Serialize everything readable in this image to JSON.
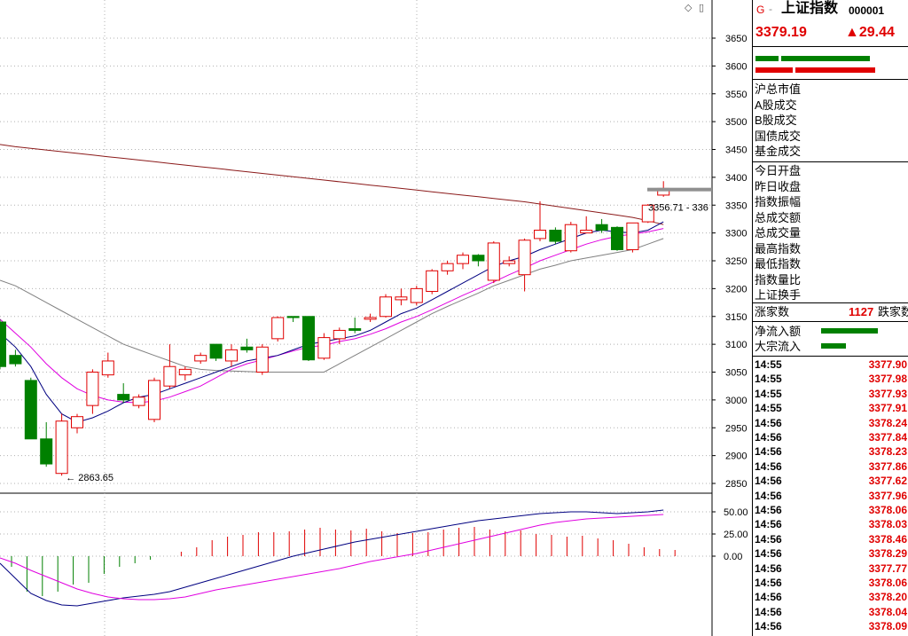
{
  "panel": {
    "icon_g": "G",
    "icon_dash": "-",
    "index_name": "上证指数",
    "index_code": "000001",
    "price": "3379.19",
    "change": "▲29.44",
    "labels_market": [
      "沪总市值",
      "A股成交",
      "B股成交",
      "国债成交",
      "基金成交"
    ],
    "labels_stats": [
      "今日开盘",
      "昨日收盘",
      "指数振幅",
      "总成交额",
      "总成交量",
      "最高指数",
      "最低指数",
      "指数量比",
      "上证换手"
    ],
    "rise_label": "涨家数",
    "rise_value": "1127",
    "fall_label": "跌家数",
    "flow_labels": [
      "净流入额",
      "大宗流入"
    ],
    "trades": [
      {
        "time": "14:55",
        "price": "3377.90"
      },
      {
        "time": "14:55",
        "price": "3377.98"
      },
      {
        "time": "14:55",
        "price": "3377.93"
      },
      {
        "time": "14:55",
        "price": "3377.91"
      },
      {
        "time": "14:56",
        "price": "3378.24"
      },
      {
        "time": "14:56",
        "price": "3377.84"
      },
      {
        "time": "14:56",
        "price": "3378.23"
      },
      {
        "time": "14:56",
        "price": "3377.86"
      },
      {
        "time": "14:56",
        "price": "3377.62"
      },
      {
        "time": "14:56",
        "price": "3377.96"
      },
      {
        "time": "14:56",
        "price": "3378.06"
      },
      {
        "time": "14:56",
        "price": "3378.03"
      },
      {
        "time": "14:56",
        "price": "3378.46"
      },
      {
        "time": "14:56",
        "price": "3378.29"
      },
      {
        "time": "14:56",
        "price": "3377.77"
      },
      {
        "time": "14:56",
        "price": "3378.06"
      },
      {
        "time": "14:56",
        "price": "3378.20"
      },
      {
        "time": "14:56",
        "price": "3378.04"
      },
      {
        "time": "14:56",
        "price": "3378.09"
      }
    ]
  },
  "colors": {
    "up": "#e00000",
    "down": "#008000",
    "ma_long": "#8b1a1a",
    "ma_fast": "#000080",
    "ma_mid": "#e000e0",
    "ma_slow": "#808080"
  },
  "chart_data": [
    {
      "type": "candlestick",
      "y_ticks": [
        3650,
        3600,
        3550,
        3500,
        3450,
        3400,
        3350,
        3300,
        3250,
        3200,
        3150,
        3100,
        3050,
        3000,
        2950,
        2900,
        2850
      ],
      "ylim": [
        2835,
        3675
      ],
      "low_annotation": "2863.65",
      "high_annotation": "3356.71 - 336",
      "candles": [
        {
          "o": 3140,
          "h": 3145,
          "l": 3055,
          "c": 3060
        },
        {
          "o": 3080,
          "h": 3090,
          "l": 3060,
          "c": 3065
        },
        {
          "o": 3035,
          "h": 3040,
          "l": 2930,
          "c": 2930
        },
        {
          "o": 2930,
          "h": 2960,
          "l": 2880,
          "c": 2885
        },
        {
          "o": 2868,
          "h": 2975,
          "l": 2864,
          "c": 2962
        },
        {
          "o": 2950,
          "h": 2975,
          "l": 2940,
          "c": 2970
        },
        {
          "o": 2990,
          "h": 3055,
          "l": 2975,
          "c": 3050
        },
        {
          "o": 3045,
          "h": 3085,
          "l": 3040,
          "c": 3070
        },
        {
          "o": 3010,
          "h": 3030,
          "l": 2995,
          "c": 3000
        },
        {
          "o": 2990,
          "h": 3010,
          "l": 2985,
          "c": 3005
        },
        {
          "o": 2965,
          "h": 3040,
          "l": 2960,
          "c": 3035
        },
        {
          "o": 3025,
          "h": 3100,
          "l": 3020,
          "c": 3060
        },
        {
          "o": 3045,
          "h": 3060,
          "l": 3035,
          "c": 3055
        },
        {
          "o": 3070,
          "h": 3085,
          "l": 3065,
          "c": 3080
        },
        {
          "o": 3100,
          "h": 3100,
          "l": 3070,
          "c": 3075
        },
        {
          "o": 3070,
          "h": 3100,
          "l": 3060,
          "c": 3090
        },
        {
          "o": 3095,
          "h": 3110,
          "l": 3085,
          "c": 3090
        },
        {
          "o": 3050,
          "h": 3100,
          "l": 3045,
          "c": 3095
        },
        {
          "o": 3110,
          "h": 3150,
          "l": 3105,
          "c": 3148
        },
        {
          "o": 3150,
          "h": 3150,
          "l": 3140,
          "c": 3148
        },
        {
          "o": 3150,
          "h": 3150,
          "l": 3070,
          "c": 3072
        },
        {
          "o": 3075,
          "h": 3120,
          "l": 3072,
          "c": 3112
        },
        {
          "o": 3110,
          "h": 3130,
          "l": 3100,
          "c": 3125
        },
        {
          "o": 3128,
          "h": 3148,
          "l": 3120,
          "c": 3125
        },
        {
          "o": 3145,
          "h": 3155,
          "l": 3140,
          "c": 3148
        },
        {
          "o": 3150,
          "h": 3190,
          "l": 3148,
          "c": 3185
        },
        {
          "o": 3180,
          "h": 3200,
          "l": 3170,
          "c": 3185
        },
        {
          "o": 3175,
          "h": 3205,
          "l": 3170,
          "c": 3200
        },
        {
          "o": 3195,
          "h": 3235,
          "l": 3190,
          "c": 3232
        },
        {
          "o": 3232,
          "h": 3250,
          "l": 3225,
          "c": 3245
        },
        {
          "o": 3245,
          "h": 3265,
          "l": 3235,
          "c": 3260
        },
        {
          "o": 3260,
          "h": 3262,
          "l": 3240,
          "c": 3250
        },
        {
          "o": 3215,
          "h": 3285,
          "l": 3210,
          "c": 3282
        },
        {
          "o": 3245,
          "h": 3258,
          "l": 3240,
          "c": 3250
        },
        {
          "o": 3225,
          "h": 3290,
          "l": 3195,
          "c": 3287
        },
        {
          "o": 3290,
          "h": 3357,
          "l": 3285,
          "c": 3305
        },
        {
          "o": 3305,
          "h": 3310,
          "l": 3280,
          "c": 3285
        },
        {
          "o": 3268,
          "h": 3320,
          "l": 3265,
          "c": 3315
        },
        {
          "o": 3300,
          "h": 3330,
          "l": 3300,
          "c": 3305
        },
        {
          "o": 3315,
          "h": 3325,
          "l": 3300,
          "c": 3305
        },
        {
          "o": 3310,
          "h": 3312,
          "l": 3268,
          "c": 3270
        },
        {
          "o": 3270,
          "h": 3318,
          "l": 3265,
          "c": 3318
        },
        {
          "o": 3320,
          "h": 3352,
          "l": 3318,
          "c": 3350
        },
        {
          "o": 3368,
          "h": 3393,
          "l": 3365,
          "c": 3380
        }
      ],
      "ma_long": [
        3459,
        3455,
        3452,
        3449,
        3446,
        3443,
        3440,
        3437,
        3434,
        3431,
        3428,
        3425,
        3422,
        3419,
        3416,
        3413,
        3410,
        3407,
        3404,
        3401,
        3398,
        3395,
        3392,
        3389,
        3386,
        3383,
        3380,
        3377,
        3374,
        3371,
        3368,
        3365,
        3362,
        3359,
        3356,
        3352,
        3348,
        3344,
        3340,
        3336,
        3332,
        3328,
        3322,
        3315
      ],
      "ma_fast": [
        3120,
        3095,
        3060,
        3010,
        2975,
        2960,
        2968,
        2980,
        2995,
        3005,
        3010,
        3020,
        3030,
        3040,
        3050,
        3060,
        3070,
        3075,
        3080,
        3090,
        3100,
        3105,
        3110,
        3115,
        3125,
        3140,
        3155,
        3165,
        3180,
        3195,
        3210,
        3225,
        3240,
        3250,
        3258,
        3270,
        3280,
        3290,
        3300,
        3305,
        3302,
        3300,
        3305,
        3320
      ],
      "ma_mid": [
        3145,
        3120,
        3095,
        3065,
        3040,
        3020,
        3008,
        3000,
        2996,
        2995,
        2998,
        3005,
        3015,
        3025,
        3040,
        3055,
        3065,
        3072,
        3080,
        3088,
        3095,
        3098,
        3105,
        3110,
        3118,
        3128,
        3140,
        3150,
        3162,
        3175,
        3188,
        3200,
        3212,
        3225,
        3237,
        3250,
        3260,
        3270,
        3280,
        3288,
        3294,
        3298,
        3302,
        3308
      ],
      "ma_slow": [
        3215,
        3205,
        3190,
        3175,
        3160,
        3145,
        3130,
        3115,
        3100,
        3090,
        3080,
        3070,
        3060,
        3055,
        3053,
        3052,
        3051,
        3050,
        3050,
        3050,
        3050,
        3050,
        3065,
        3080,
        3095,
        3110,
        3125,
        3140,
        3155,
        3168,
        3180,
        3192,
        3205,
        3215,
        3225,
        3235,
        3242,
        3250,
        3255,
        3260,
        3265,
        3270,
        3280,
        3290
      ]
    },
    {
      "type": "bar",
      "y_ticks": [
        50.0,
        25.0,
        0.0
      ],
      "y_tick_labels": [
        "50.00",
        "25.00",
        "0.00"
      ],
      "ylim": [
        -58,
        62
      ],
      "values": [
        -12,
        -40,
        -45,
        -40,
        -32,
        -30,
        -20,
        -12,
        -8,
        -4,
        0,
        5,
        10,
        18,
        22,
        24,
        27,
        27,
        28,
        30,
        32,
        30,
        29,
        31,
        28,
        26,
        26,
        27,
        30,
        32,
        33,
        30,
        28,
        29,
        25,
        24,
        22,
        23,
        20,
        18,
        14,
        10,
        8,
        7
      ],
      "line_a": [
        -8,
        -25,
        -42,
        -50,
        -55,
        -56,
        -53,
        -50,
        -47,
        -45,
        -43,
        -40,
        -35,
        -30,
        -25,
        -20,
        -15,
        -10,
        -5,
        0,
        4,
        8,
        12,
        16,
        19,
        22,
        25,
        28,
        31,
        34,
        37,
        40,
        42,
        44,
        46,
        48,
        49,
        50,
        50,
        49,
        48,
        49,
        50,
        52
      ],
      "line_b": [
        -2,
        -8,
        -16,
        -23,
        -30,
        -37,
        -42,
        -46,
        -48,
        -49,
        -49,
        -48,
        -46,
        -42,
        -38,
        -35,
        -32,
        -29,
        -26,
        -23,
        -20,
        -17,
        -14,
        -10,
        -6,
        -3,
        0,
        3,
        7,
        11,
        15,
        19,
        23,
        27,
        31,
        35,
        38,
        40,
        42,
        43,
        44,
        45,
        46,
        47
      ]
    }
  ]
}
